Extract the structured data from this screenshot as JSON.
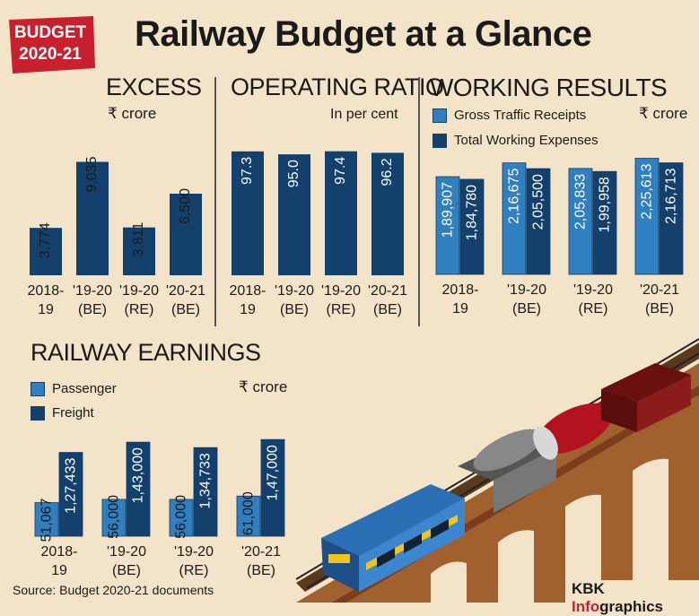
{
  "badge": {
    "line1": "BUDGET",
    "line2": "2020-21"
  },
  "title": "Railway Budget at a Glance",
  "excess": {
    "title": "EXCESS",
    "unit": "₹ crore",
    "chart_data": {
      "type": "bar",
      "categories": [
        [
          "2018-",
          "19"
        ],
        [
          "'19-20",
          "(BE)"
        ],
        [
          "'19-20",
          "(RE)"
        ],
        [
          "'20-21",
          "(BE)"
        ]
      ],
      "values": [
        3774,
        9035,
        3811,
        6500
      ],
      "labels": [
        "3,774",
        "9,035",
        "3,811",
        "6,500"
      ],
      "ylim": [
        0,
        10000
      ],
      "color": "#14406d"
    }
  },
  "operating_ratio": {
    "title": "OPERATING RATIO",
    "unit": "In per cent",
    "chart_data": {
      "type": "bar",
      "categories": [
        [
          "2018-",
          "19"
        ],
        [
          "'19-20",
          "(BE)"
        ],
        [
          "'19-20",
          "(RE)"
        ],
        [
          "'20-21",
          "(BE)"
        ]
      ],
      "values": [
        97.3,
        95.0,
        97.4,
        96.2
      ],
      "labels": [
        "97.3",
        "95.0",
        "97.4",
        "96.2"
      ],
      "ylim": [
        0,
        100
      ],
      "color": "#14406d"
    }
  },
  "working_results": {
    "title": "WORKING RESULTS",
    "unit": "₹ crore",
    "chart_data": {
      "type": "bar",
      "categories": [
        [
          "2018-",
          "19"
        ],
        [
          "'19-20",
          "(BE)"
        ],
        [
          "'19-20",
          "(RE)"
        ],
        [
          "'20-21",
          "(BE)"
        ]
      ],
      "series": [
        {
          "name": "Gross Traffic Receipts",
          "values": [
            189907,
            216675,
            205833,
            225613
          ],
          "labels": [
            "1,89,907",
            "2,16,675",
            "2,05,833",
            "2,25,613"
          ],
          "color": "#2f7fc1"
        },
        {
          "name": "Total Working Expenses",
          "values": [
            184780,
            205500,
            199958,
            216713
          ],
          "labels": [
            "1,84,780",
            "2,05,500",
            "1,99,958",
            "2,16,713"
          ],
          "color": "#14406d"
        }
      ],
      "ylim": [
        0,
        230000
      ]
    }
  },
  "railway_earnings": {
    "title": "RAILWAY EARNINGS",
    "unit": "₹ crore",
    "chart_data": {
      "type": "bar",
      "categories": [
        [
          "2018-",
          "19"
        ],
        [
          "'19-20",
          "(BE)"
        ],
        [
          "'19-20",
          "(RE)"
        ],
        [
          "'20-21",
          "(BE)"
        ]
      ],
      "series": [
        {
          "name": "Passenger",
          "values": [
            51067,
            56000,
            56000,
            61000
          ],
          "labels": [
            "51,067",
            "56,000",
            "56,000",
            "61,000"
          ],
          "color": "#2f7fc1"
        },
        {
          "name": "Freight",
          "values": [
            127433,
            143000,
            134733,
            147000
          ],
          "labels": [
            "1,27,433",
            "1,43,000",
            "1,34,733",
            "1,47,000"
          ],
          "color": "#14406d"
        }
      ],
      "ylim": [
        0,
        150000
      ]
    }
  },
  "source": "Source: Budget 2020-21 documents",
  "brand": {
    "part1": "KBK ",
    "part2": "Info",
    "part3": "graphics"
  }
}
